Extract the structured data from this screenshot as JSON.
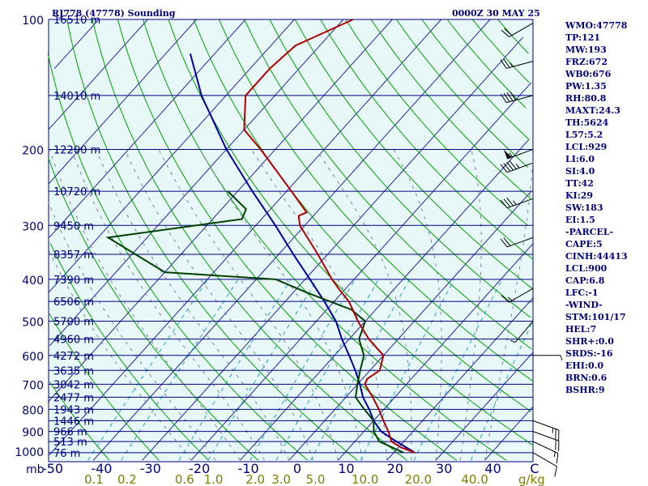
{
  "header": {
    "station": "RJ778 (47778) Sounding",
    "datetime": "0000Z 30 MAY 25"
  },
  "indices": [
    "WMO:47778",
    "TP:121",
    "MW:193",
    "FRZ:672",
    "WB0:676",
    "PW:1.35",
    "RH:80.8",
    "MAXT:24.3",
    "TH:5624",
    "L57:5.2",
    "LCL:929",
    "LI:6.0",
    "SI:4.0",
    "TT:42",
    "KI:29",
    "SW:183",
    "EI:1.5",
    "-PARCEL-",
    "CAPE:5",
    "CINH:44413",
    "LCL:900",
    "CAP:6.8",
    "LFC:-1",
    "-WIND-",
    "STM:101/17",
    "HEL:7",
    "SHR+:0.0",
    "SRDS:-16",
    "EHI:0.0",
    "BRN:0.6",
    "BSHR:9"
  ],
  "colors": {
    "background": "#ffffff",
    "plot_area": "#e8f8f8",
    "isobar": "#000080",
    "isotherm": "#2020a0",
    "dry_adiabat": "#00a000",
    "moist_adiabat": "#8080a0",
    "mixing_ratio": "#20a0c0",
    "temperature": "#b00000",
    "dewpoint": "#004000",
    "parcel": "#0000a0",
    "axis_text": "#000080",
    "mixing_text": "#808000",
    "wind_barb": "#000000"
  },
  "chart_data": {
    "type": "skew-t",
    "pressure_axis": {
      "unit": "mb",
      "tick_labels": [
        "100",
        "200",
        "300",
        "400",
        "500",
        "600",
        "700",
        "800",
        "900",
        "1000"
      ],
      "range": [
        1000,
        100
      ]
    },
    "temperature_axis": {
      "tick_labels": [
        "-50",
        "-40",
        "-30",
        "-20",
        "-10",
        "0",
        "10",
        "20",
        "30",
        "40",
        "C"
      ],
      "values": [
        -50,
        -40,
        -30,
        -20,
        -10,
        0,
        10,
        20,
        30,
        40
      ]
    },
    "mixing_ratio_axis": {
      "unit": "g/kg",
      "tick_labels": [
        "0.1",
        "0.2",
        "0.6",
        "1.0",
        "2.0",
        "3.0",
        "5.0",
        "10.0",
        "20.0",
        "40.0"
      ],
      "values": [
        0.1,
        0.2,
        0.6,
        1.0,
        2.0,
        3.0,
        5.0,
        10.0,
        20.0,
        40.0
      ]
    },
    "height_levels": [
      {
        "p": 1008,
        "label": "76 m"
      },
      {
        "p": 950,
        "label": "513 m"
      },
      {
        "p": 900,
        "label": "966 m"
      },
      {
        "p": 850,
        "label": "1446 m"
      },
      {
        "p": 800,
        "label": "1943 m"
      },
      {
        "p": 750,
        "label": "2477 m"
      },
      {
        "p": 700,
        "label": "3042 m"
      },
      {
        "p": 650,
        "label": "3635 m"
      },
      {
        "p": 600,
        "label": "4272 m"
      },
      {
        "p": 550,
        "label": "4960 m"
      },
      {
        "p": 500,
        "label": "5700 m"
      },
      {
        "p": 450,
        "label": "6506 m"
      },
      {
        "p": 400,
        "label": "7390 m"
      },
      {
        "p": 350,
        "label": "8357 m"
      },
      {
        "p": 300,
        "label": "9450 m"
      },
      {
        "p": 250,
        "label": "10720 m"
      },
      {
        "p": 200,
        "label": "12200 m"
      },
      {
        "p": 150,
        "label": "14010 m"
      },
      {
        "p": 100,
        "label": "16510 m"
      }
    ],
    "temperature": [
      {
        "p": 1008,
        "t": 24.3
      },
      {
        "p": 980,
        "t": 20.5
      },
      {
        "p": 950,
        "t": 17.5
      },
      {
        "p": 900,
        "t": 15.0
      },
      {
        "p": 850,
        "t": 12.0
      },
      {
        "p": 800,
        "t": 9.0
      },
      {
        "p": 750,
        "t": 5.5
      },
      {
        "p": 700,
        "t": 1.5
      },
      {
        "p": 680,
        "t": 1.0
      },
      {
        "p": 650,
        "t": 2.0
      },
      {
        "p": 600,
        "t": 0.0
      },
      {
        "p": 550,
        "t": -6.0
      },
      {
        "p": 500,
        "t": -11.5
      },
      {
        "p": 450,
        "t": -17.0
      },
      {
        "p": 420,
        "t": -21.5
      },
      {
        "p": 400,
        "t": -24.5
      },
      {
        "p": 350,
        "t": -32.0
      },
      {
        "p": 300,
        "t": -41.0
      },
      {
        "p": 285,
        "t": -43.0
      },
      {
        "p": 280,
        "t": -42.0
      },
      {
        "p": 250,
        "t": -49.0
      },
      {
        "p": 200,
        "t": -63.0
      },
      {
        "p": 180,
        "t": -70.0
      },
      {
        "p": 150,
        "t": -76.0
      },
      {
        "p": 130,
        "t": -76.0
      },
      {
        "p": 115,
        "t": -75.0
      },
      {
        "p": 100,
        "t": -68.0
      }
    ],
    "dewpoint": [
      {
        "p": 1008,
        "td": 22.0
      },
      {
        "p": 950,
        "td": 15.0
      },
      {
        "p": 900,
        "td": 12.0
      },
      {
        "p": 850,
        "td": 10.0
      },
      {
        "p": 800,
        "td": 6.0
      },
      {
        "p": 750,
        "td": 2.0
      },
      {
        "p": 700,
        "td": 0.0
      },
      {
        "p": 650,
        "td": -2.0
      },
      {
        "p": 600,
        "td": -4.0
      },
      {
        "p": 550,
        "td": -8.0
      },
      {
        "p": 500,
        "td": -10.0
      },
      {
        "p": 470,
        "td": -15.0
      },
      {
        "p": 430,
        "td": -27.0
      },
      {
        "p": 400,
        "td": -36.0
      },
      {
        "p": 385,
        "td": -60.0
      },
      {
        "p": 320,
        "td": -78.0
      },
      {
        "p": 290,
        "td": -54.0
      },
      {
        "p": 275,
        "td": -55.0
      },
      {
        "p": 250,
        "td": -62.0
      }
    ],
    "parcel": [
      {
        "p": 1008,
        "t": 24.3
      },
      {
        "p": 950,
        "t": 18.5
      },
      {
        "p": 900,
        "t": 13.5
      },
      {
        "p": 850,
        "t": 10.0
      },
      {
        "p": 800,
        "t": 7.0
      },
      {
        "p": 750,
        "t": 3.5
      },
      {
        "p": 700,
        "t": 0.5
      },
      {
        "p": 650,
        "t": -3.0
      },
      {
        "p": 600,
        "t": -7.0
      },
      {
        "p": 550,
        "t": -11.5
      },
      {
        "p": 500,
        "t": -16.0
      },
      {
        "p": 450,
        "t": -22.0
      },
      {
        "p": 400,
        "t": -29.0
      },
      {
        "p": 350,
        "t": -37.0
      },
      {
        "p": 300,
        "t": -46.0
      },
      {
        "p": 250,
        "t": -57.0
      },
      {
        "p": 200,
        "t": -70.0
      },
      {
        "p": 150,
        "t": -85.0
      },
      {
        "p": 120,
        "t": -95.0
      }
    ],
    "wind_barbs": [
      {
        "p": 1008,
        "dir": 120,
        "spd": 10
      },
      {
        "p": 950,
        "dir": 115,
        "spd": 15
      },
      {
        "p": 900,
        "dir": 110,
        "spd": 20
      },
      {
        "p": 850,
        "dir": 110,
        "spd": 25
      },
      {
        "p": 600,
        "dir": 90,
        "spd": 5
      },
      {
        "p": 500,
        "dir": 220,
        "spd": 5
      },
      {
        "p": 420,
        "dir": 240,
        "spd": 15
      },
      {
        "p": 320,
        "dir": 250,
        "spd": 20
      },
      {
        "p": 260,
        "dir": 250,
        "spd": 35
      },
      {
        "p": 215,
        "dir": 250,
        "spd": 45
      },
      {
        "p": 200,
        "dir": 250,
        "spd": 55
      },
      {
        "p": 150,
        "dir": 255,
        "spd": 40
      },
      {
        "p": 125,
        "dir": 255,
        "spd": 25
      },
      {
        "p": 102,
        "dir": 240,
        "spd": 20
      }
    ]
  }
}
